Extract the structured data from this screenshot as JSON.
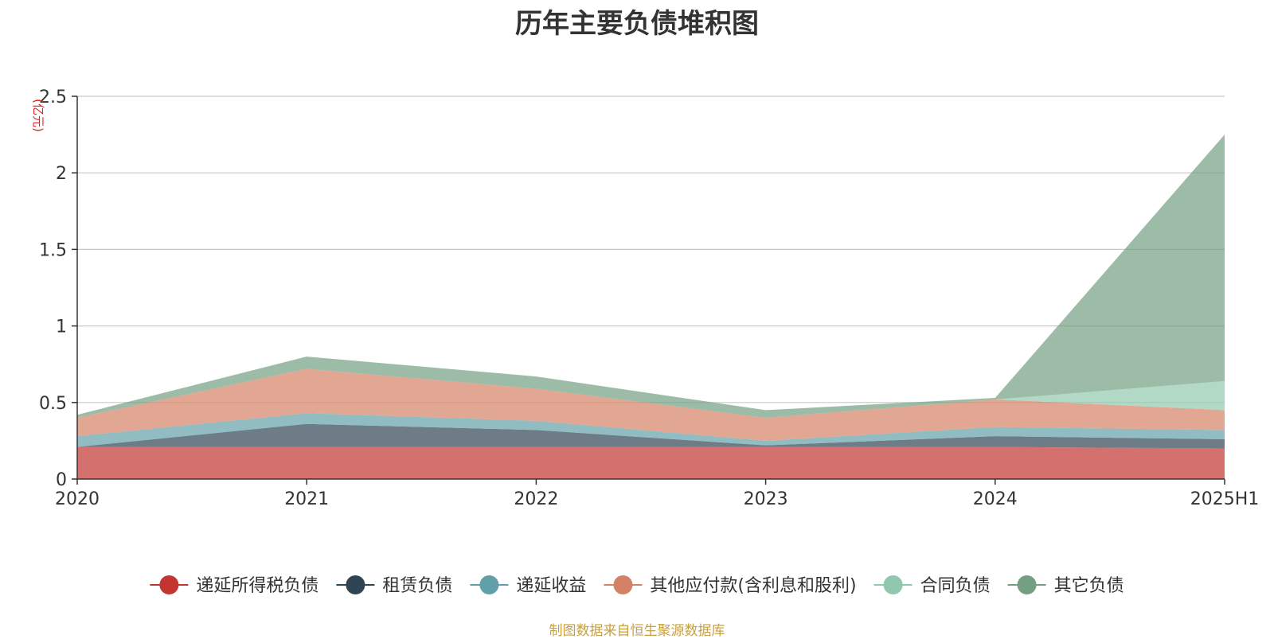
{
  "chart_data": {
    "type": "area",
    "stacked": true,
    "title": "历年主要负债堆积图",
    "unit": "(亿元)",
    "source": "制图数据来自恒生聚源数据库",
    "categories": [
      "2020",
      "2021",
      "2022",
      "2023",
      "2024",
      "2025H1"
    ],
    "ylim": [
      0,
      2.5
    ],
    "yticks": [
      0,
      0.5,
      1,
      1.5,
      2,
      2.5
    ],
    "ytick_labels": [
      "0",
      "0.5",
      "1",
      "1.5",
      "2",
      "2.5"
    ],
    "grid": true,
    "legend_position": "bottom",
    "series": [
      {
        "name": "递延所得税负债",
        "color": "#c23531",
        "values": [
          0.21,
          0.21,
          0.21,
          0.21,
          0.21,
          0.2
        ]
      },
      {
        "name": "租赁负债",
        "color": "#2f4554",
        "values": [
          0.0,
          0.15,
          0.11,
          0.01,
          0.07,
          0.06
        ]
      },
      {
        "name": "递延收益",
        "color": "#61a0a8",
        "values": [
          0.07,
          0.07,
          0.06,
          0.03,
          0.06,
          0.06
        ]
      },
      {
        "name": "其他应付款(含利息和股利)",
        "color": "#d48265",
        "values": [
          0.12,
          0.29,
          0.21,
          0.15,
          0.18,
          0.13
        ]
      },
      {
        "name": "合同负债",
        "color": "#91c7ae",
        "values": [
          0.0,
          0.0,
          0.0,
          0.0,
          0.0,
          0.19
        ]
      },
      {
        "name": "其它负债",
        "color": "#749f83",
        "values": [
          0.02,
          0.08,
          0.08,
          0.05,
          0.01,
          1.61
        ]
      }
    ]
  }
}
